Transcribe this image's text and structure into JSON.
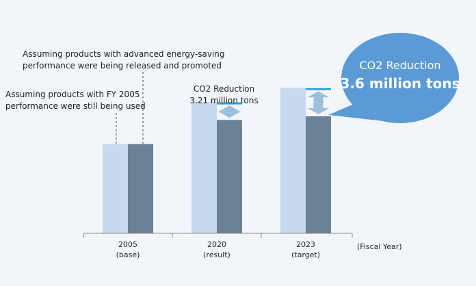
{
  "chart_data": {
    "type": "bar",
    "categories": [
      "2005",
      "2020",
      "2023"
    ],
    "category_sublabels": [
      "(base)",
      "(result)",
      "(target)"
    ],
    "xlabel": "(Fiscal Year)",
    "series": [
      {
        "name": "Assuming products with FY 2005 performance were still being used",
        "color": "#c5daee",
        "values": [
          100,
          147,
          163
        ]
      },
      {
        "name": "Assuming products with advanced energy-saving performance were being released and promoted",
        "color": "#6b8196",
        "values": [
          100,
          127,
          131
        ]
      }
    ],
    "reductions": [
      {
        "category": "2020",
        "text_line1": "CO2 Reduction",
        "text_line2": "3.21 million tons"
      },
      {
        "category": "2023",
        "text_line1": "CO2 Reduction",
        "text_line2": "3.6 million tons"
      }
    ],
    "ylim": [
      0,
      200
    ]
  },
  "annotations": {
    "fy2005_line1": "Assuming products with  FY 2005",
    "fy2005_line2": "performance were still being used",
    "advanced_line1": "Assuming products with advanced energy-saving",
    "advanced_line2": "performance were being released and promoted"
  },
  "colors": {
    "accent_line": "#2ea3d8",
    "arrow": "#9fc0dd",
    "bubble": "#5b9bd5",
    "axis": "#888888"
  }
}
